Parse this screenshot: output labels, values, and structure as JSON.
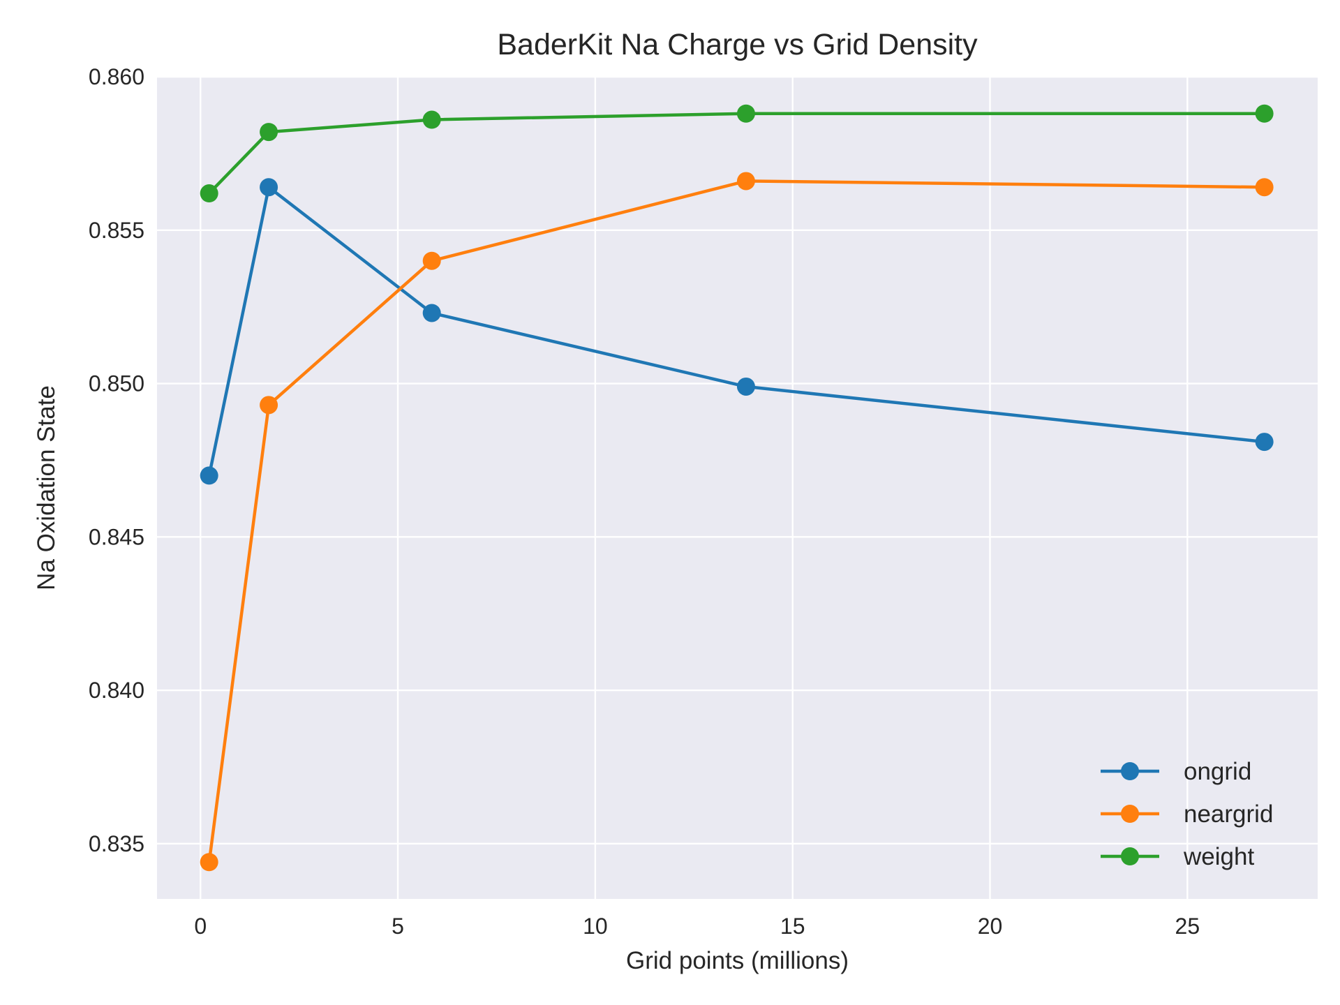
{
  "chart_data": {
    "type": "line",
    "title": "BaderKit Na Charge vs Grid Density",
    "xlabel": "Grid points (millions)",
    "ylabel": "Na Oxidation State",
    "xlim": [
      -1.1,
      28.3
    ],
    "ylim": [
      0.8332,
      0.86
    ],
    "xticks": [
      0,
      5,
      10,
      15,
      20,
      25
    ],
    "yticks": [
      0.835,
      0.84,
      0.845,
      0.85,
      0.855,
      0.86
    ],
    "xtick_labels": [
      "0",
      "5",
      "10",
      "15",
      "20",
      "25"
    ],
    "ytick_labels": [
      "0.835",
      "0.840",
      "0.845",
      "0.850",
      "0.855",
      "0.860"
    ],
    "grid": true,
    "legend_position": "lower-right",
    "x": [
      0.22,
      1.73,
      5.86,
      13.82,
      26.95
    ],
    "series": [
      {
        "name": "ongrid",
        "color": "#1f77b4",
        "values": [
          0.847,
          0.8564,
          0.8523,
          0.8499,
          0.8481
        ]
      },
      {
        "name": "neargrid",
        "color": "#ff7f0e",
        "values": [
          0.8344,
          0.8493,
          0.854,
          0.8566,
          0.8564
        ]
      },
      {
        "name": "weight",
        "color": "#2ca02c",
        "values": [
          0.8562,
          0.8582,
          0.8586,
          0.8588,
          0.8588
        ]
      }
    ]
  }
}
